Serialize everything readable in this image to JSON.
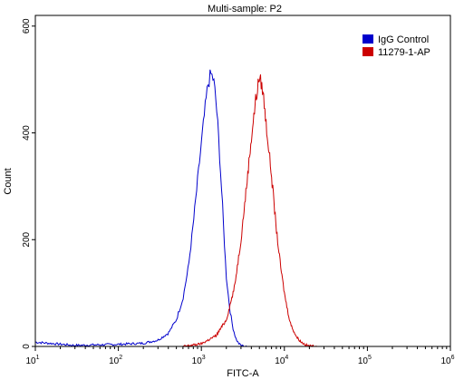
{
  "chart_data": {
    "type": "line",
    "title": "Multi-sample: P2",
    "xlabel": "FITC-A",
    "ylabel": "Count",
    "x_scale": "log",
    "xlim": [
      10,
      1000000
    ],
    "ylim": [
      0,
      620
    ],
    "x_ticks": [
      {
        "value": 10,
        "base": "10",
        "exp": "1"
      },
      {
        "value": 100,
        "base": "10",
        "exp": "2"
      },
      {
        "value": 1000,
        "base": "10",
        "exp": "3"
      },
      {
        "value": 10000,
        "base": "10",
        "exp": "4"
      },
      {
        "value": 100000,
        "base": "10",
        "exp": "5"
      },
      {
        "value": 1000000,
        "base": "10",
        "exp": "6"
      }
    ],
    "y_ticks": [
      0,
      200,
      400,
      600
    ],
    "grid": false,
    "legend_position": "top-right",
    "series": [
      {
        "name": "IgG Control",
        "color": "#0000cc",
        "x": [
          10,
          30,
          100,
          200,
          300,
          400,
          500,
          600,
          700,
          800,
          900,
          1000,
          1100,
          1200,
          1300,
          1400,
          1500,
          1600,
          1700,
          1800,
          1900,
          2000,
          2200,
          2400,
          2600,
          2800,
          3000,
          3500
        ],
        "y": [
          8,
          2,
          4,
          6,
          12,
          25,
          50,
          90,
          150,
          230,
          310,
          380,
          440,
          490,
          510,
          500,
          460,
          400,
          330,
          260,
          190,
          130,
          70,
          35,
          15,
          6,
          2,
          0
        ]
      },
      {
        "name": "11279-1-AP",
        "color": "#cc0000",
        "x": [
          600,
          1000,
          1500,
          2000,
          2500,
          3000,
          3500,
          4000,
          4500,
          5000,
          5500,
          6000,
          7000,
          8000,
          9000,
          10000,
          11000,
          12000,
          14000,
          16000,
          18000,
          20000,
          25000
        ],
        "y": [
          0,
          5,
          20,
          50,
          110,
          200,
          300,
          390,
          460,
          505,
          480,
          420,
          320,
          220,
          150,
          100,
          65,
          40,
          18,
          8,
          3,
          1,
          0
        ]
      }
    ]
  }
}
